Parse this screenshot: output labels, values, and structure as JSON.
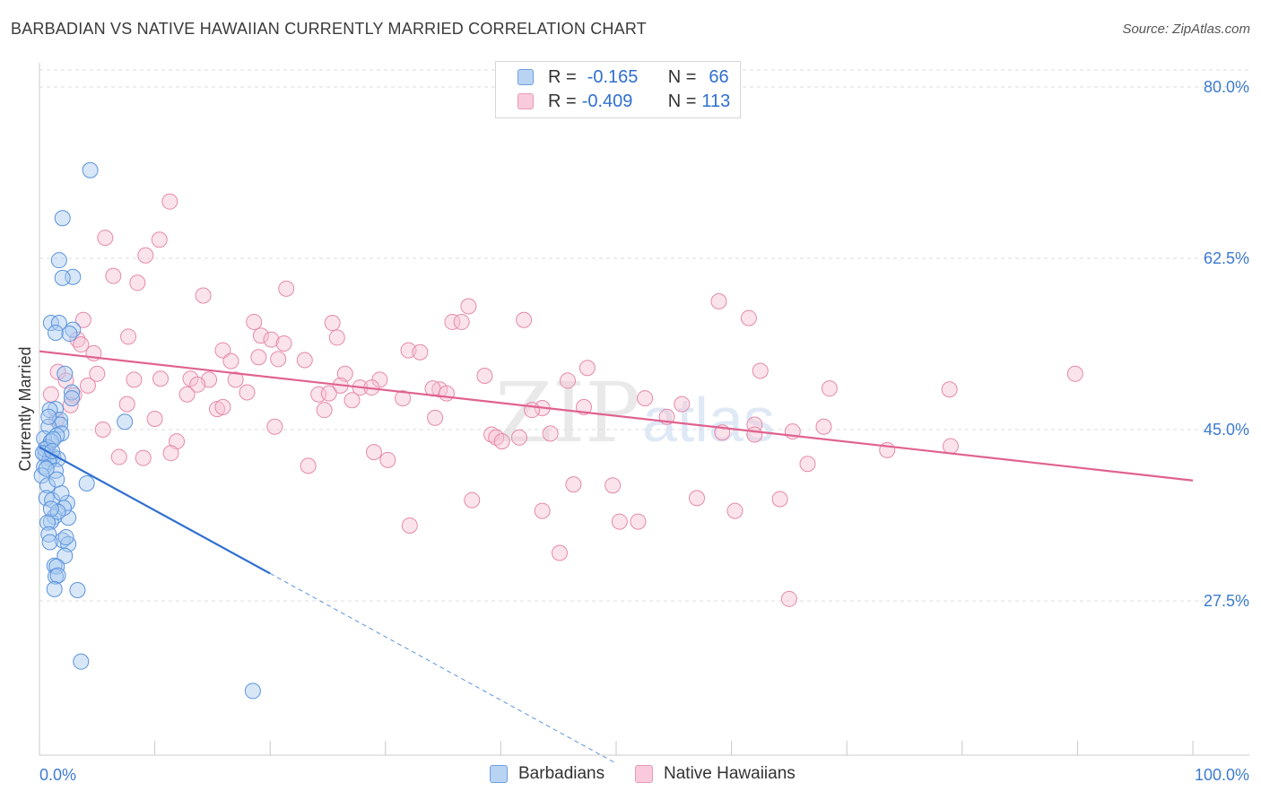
{
  "title": "BARBADIAN VS NATIVE HAWAIIAN CURRENTLY MARRIED CORRELATION CHART",
  "source": "Source: ZipAtlas.com",
  "watermark": {
    "zip": "ZIP",
    "atlas": "atlas"
  },
  "legend": {
    "rows": [
      {
        "r_label": "R =",
        "r_value": "-0.165",
        "n_label": "N =",
        "n_value": "66"
      },
      {
        "r_label": "R =",
        "r_value": "-0.409",
        "n_label": "N =",
        "n_value": "113"
      }
    ]
  },
  "colors": {
    "blue_fill": "#a9c9f0",
    "blue_stroke": "#5b93dd",
    "blue_line": "#2f6fd1",
    "pink_fill": "#f7c0d2",
    "pink_stroke": "#e58aab",
    "pink_line": "#e0628f",
    "grid": "#dddddd",
    "tick_label": "#3d7bd1"
  },
  "chart_data": {
    "type": "scatter",
    "xlabel": "",
    "ylabel": "Currently Married",
    "xlim": [
      0,
      100
    ],
    "ylim": [
      10,
      82
    ],
    "x_tick_labels": [
      "0.0%",
      "100.0%"
    ],
    "y_ticks": [
      27.5,
      45.0,
      62.5,
      80.0
    ],
    "y_tick_labels": [
      "27.5%",
      "45.0%",
      "62.5%",
      "80.0%"
    ],
    "grid": "horizontal dashed",
    "series": [
      {
        "name": "Barbadians",
        "color": "#a9c9f0",
        "trend": {
          "x0": 0,
          "y0": 43.2,
          "x1": 20,
          "y1": 30.3,
          "dashed_to_x": 50,
          "dashed_to_y": 10.9
        },
        "points": [
          [
            4.4,
            71.5
          ],
          [
            2.0,
            66.6
          ],
          [
            1.7,
            62.3
          ],
          [
            2.9,
            60.6
          ],
          [
            2.0,
            60.5
          ],
          [
            1.0,
            55.9
          ],
          [
            1.7,
            55.9
          ],
          [
            2.9,
            55.2
          ],
          [
            1.4,
            54.9
          ],
          [
            2.6,
            54.8
          ],
          [
            2.2,
            50.7
          ],
          [
            2.8,
            48.8
          ],
          [
            2.8,
            48.2
          ],
          [
            1.4,
            47.1
          ],
          [
            0.9,
            47.0
          ],
          [
            1.8,
            46.0
          ],
          [
            7.4,
            45.8
          ],
          [
            1.8,
            45.5
          ],
          [
            0.8,
            45.3
          ],
          [
            1.9,
            44.6
          ],
          [
            1.5,
            44.4
          ],
          [
            0.4,
            44.1
          ],
          [
            1.0,
            43.8
          ],
          [
            0.7,
            43.2
          ],
          [
            0.5,
            42.5
          ],
          [
            1.2,
            42.2
          ],
          [
            0.9,
            42.1
          ],
          [
            1.6,
            42.0
          ],
          [
            0.8,
            41.7
          ],
          [
            0.4,
            41.2
          ],
          [
            1.4,
            40.8
          ],
          [
            0.2,
            40.3
          ],
          [
            4.1,
            39.5
          ],
          [
            0.7,
            39.3
          ],
          [
            0.6,
            38.0
          ],
          [
            1.1,
            37.8
          ],
          [
            2.4,
            37.5
          ],
          [
            1.3,
            36.1
          ],
          [
            2.5,
            36.0
          ],
          [
            1.0,
            35.6
          ],
          [
            0.7,
            35.5
          ],
          [
            0.8,
            34.3
          ],
          [
            2.0,
            33.7
          ],
          [
            2.5,
            33.3
          ],
          [
            2.2,
            32.1
          ],
          [
            1.3,
            31.1
          ],
          [
            1.5,
            31.0
          ],
          [
            1.4,
            30.0
          ],
          [
            1.6,
            30.1
          ],
          [
            1.3,
            28.7
          ],
          [
            3.3,
            28.6
          ],
          [
            3.6,
            21.3
          ],
          [
            18.5,
            18.3
          ],
          [
            0.5,
            43.0
          ],
          [
            1.2,
            44.0
          ],
          [
            0.3,
            42.6
          ],
          [
            2.1,
            37.0
          ],
          [
            0.9,
            33.5
          ],
          [
            1.6,
            36.6
          ],
          [
            1.1,
            42.8
          ],
          [
            0.6,
            41.0
          ],
          [
            1.9,
            38.5
          ],
          [
            2.3,
            34.0
          ],
          [
            0.8,
            46.3
          ],
          [
            1.5,
            39.9
          ],
          [
            1.0,
            36.9
          ]
        ]
      },
      {
        "name": "Native Hawaiians",
        "color": "#f7c0d2",
        "trend": {
          "x0": 0,
          "y0": 53.0,
          "x1": 100,
          "y1": 39.8
        },
        "points": [
          [
            11.3,
            68.3
          ],
          [
            5.7,
            64.6
          ],
          [
            10.4,
            64.4
          ],
          [
            9.2,
            62.8
          ],
          [
            6.4,
            60.7
          ],
          [
            8.5,
            60.0
          ],
          [
            21.4,
            59.4
          ],
          [
            14.2,
            58.7
          ],
          [
            37.2,
            57.6
          ],
          [
            3.8,
            56.2
          ],
          [
            18.6,
            56.0
          ],
          [
            25.4,
            55.9
          ],
          [
            35.8,
            56.0
          ],
          [
            42.0,
            56.2
          ],
          [
            36.6,
            56.0
          ],
          [
            58.9,
            58.1
          ],
          [
            61.5,
            56.4
          ],
          [
            7.7,
            54.5
          ],
          [
            19.2,
            54.6
          ],
          [
            20.1,
            54.2
          ],
          [
            21.2,
            53.8
          ],
          [
            25.8,
            54.4
          ],
          [
            3.3,
            54.2
          ],
          [
            3.6,
            53.7
          ],
          [
            15.9,
            53.1
          ],
          [
            20.7,
            52.2
          ],
          [
            32.0,
            53.1
          ],
          [
            33.0,
            52.9
          ],
          [
            4.7,
            52.8
          ],
          [
            16.6,
            52.0
          ],
          [
            19.0,
            52.4
          ],
          [
            23.0,
            52.1
          ],
          [
            47.5,
            51.3
          ],
          [
            62.5,
            51.0
          ],
          [
            1.6,
            50.9
          ],
          [
            5.0,
            50.7
          ],
          [
            26.5,
            50.7
          ],
          [
            38.6,
            50.5
          ],
          [
            10.5,
            50.2
          ],
          [
            13.1,
            50.2
          ],
          [
            8.2,
            50.1
          ],
          [
            14.7,
            50.1
          ],
          [
            17.0,
            50.1
          ],
          [
            29.5,
            50.1
          ],
          [
            45.8,
            50.0
          ],
          [
            2.3,
            50.0
          ],
          [
            13.7,
            49.6
          ],
          [
            26.1,
            49.5
          ],
          [
            27.8,
            49.3
          ],
          [
            28.8,
            49.3
          ],
          [
            34.7,
            49.1
          ],
          [
            34.1,
            49.2
          ],
          [
            68.5,
            49.2
          ],
          [
            78.9,
            49.1
          ],
          [
            89.8,
            50.7
          ],
          [
            1.0,
            48.6
          ],
          [
            12.8,
            48.6
          ],
          [
            18.0,
            48.8
          ],
          [
            24.2,
            48.6
          ],
          [
            25.1,
            48.7
          ],
          [
            27.1,
            48.0
          ],
          [
            31.5,
            48.2
          ],
          [
            35.3,
            48.7
          ],
          [
            52.5,
            48.2
          ],
          [
            3.0,
            48.5
          ],
          [
            7.6,
            47.6
          ],
          [
            15.4,
            47.1
          ],
          [
            15.9,
            47.3
          ],
          [
            24.7,
            47.0
          ],
          [
            43.6,
            47.2
          ],
          [
            47.2,
            47.3
          ],
          [
            55.7,
            47.6
          ],
          [
            42.7,
            47.0
          ],
          [
            10.0,
            46.1
          ],
          [
            34.3,
            46.2
          ],
          [
            54.4,
            46.3
          ],
          [
            62.0,
            45.5
          ],
          [
            20.4,
            45.3
          ],
          [
            59.2,
            44.7
          ],
          [
            62.0,
            44.5
          ],
          [
            65.3,
            44.8
          ],
          [
            39.2,
            44.5
          ],
          [
            39.6,
            44.2
          ],
          [
            41.6,
            44.2
          ],
          [
            44.3,
            44.6
          ],
          [
            40.1,
            43.8
          ],
          [
            11.9,
            43.8
          ],
          [
            11.4,
            42.6
          ],
          [
            29.0,
            42.7
          ],
          [
            30.2,
            41.9
          ],
          [
            68.0,
            45.3
          ],
          [
            73.5,
            42.9
          ],
          [
            79.0,
            43.3
          ],
          [
            6.9,
            42.2
          ],
          [
            9.0,
            42.1
          ],
          [
            23.3,
            41.3
          ],
          [
            66.6,
            41.5
          ],
          [
            46.3,
            39.4
          ],
          [
            49.7,
            39.3
          ],
          [
            37.5,
            37.8
          ],
          [
            43.6,
            36.7
          ],
          [
            57.0,
            38.0
          ],
          [
            60.3,
            36.7
          ],
          [
            64.2,
            37.9
          ],
          [
            50.3,
            35.6
          ],
          [
            51.9,
            35.6
          ],
          [
            32.1,
            35.2
          ],
          [
            45.1,
            32.4
          ],
          [
            65.0,
            27.7
          ],
          [
            1.5,
            46.0
          ],
          [
            2.7,
            47.5
          ],
          [
            4.2,
            49.5
          ],
          [
            5.5,
            45.0
          ]
        ]
      }
    ]
  },
  "bottom_legend": [
    "Barbadians",
    "Native Hawaiians"
  ]
}
